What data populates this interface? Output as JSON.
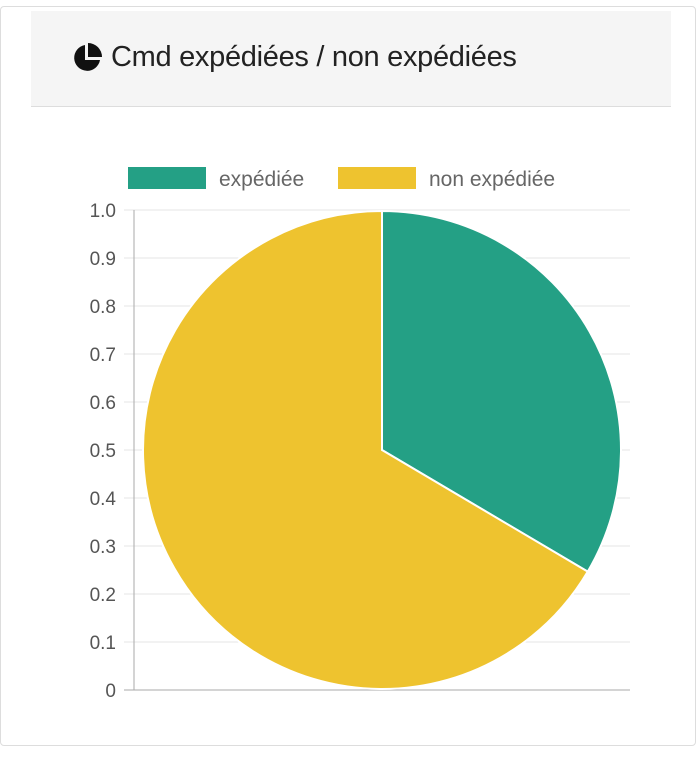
{
  "panel": {
    "title": "Cmd expédiées / non expédiées",
    "icon": "pie-chart-icon"
  },
  "chart_data": {
    "type": "pie",
    "categories": [
      "expédiée",
      "non expédiée"
    ],
    "values": [
      0.335,
      0.665
    ],
    "colors": [
      "#24a085",
      "#eec32f"
    ],
    "y_ticks": [
      "1.0",
      "0.9",
      "0.8",
      "0.7",
      "0.6",
      "0.5",
      "0.4",
      "0.3",
      "0.2",
      "0.1",
      "0"
    ],
    "ylim": [
      0,
      1
    ],
    "legend_position": "top",
    "grid": true,
    "title": "",
    "xlabel": "",
    "ylabel": ""
  }
}
